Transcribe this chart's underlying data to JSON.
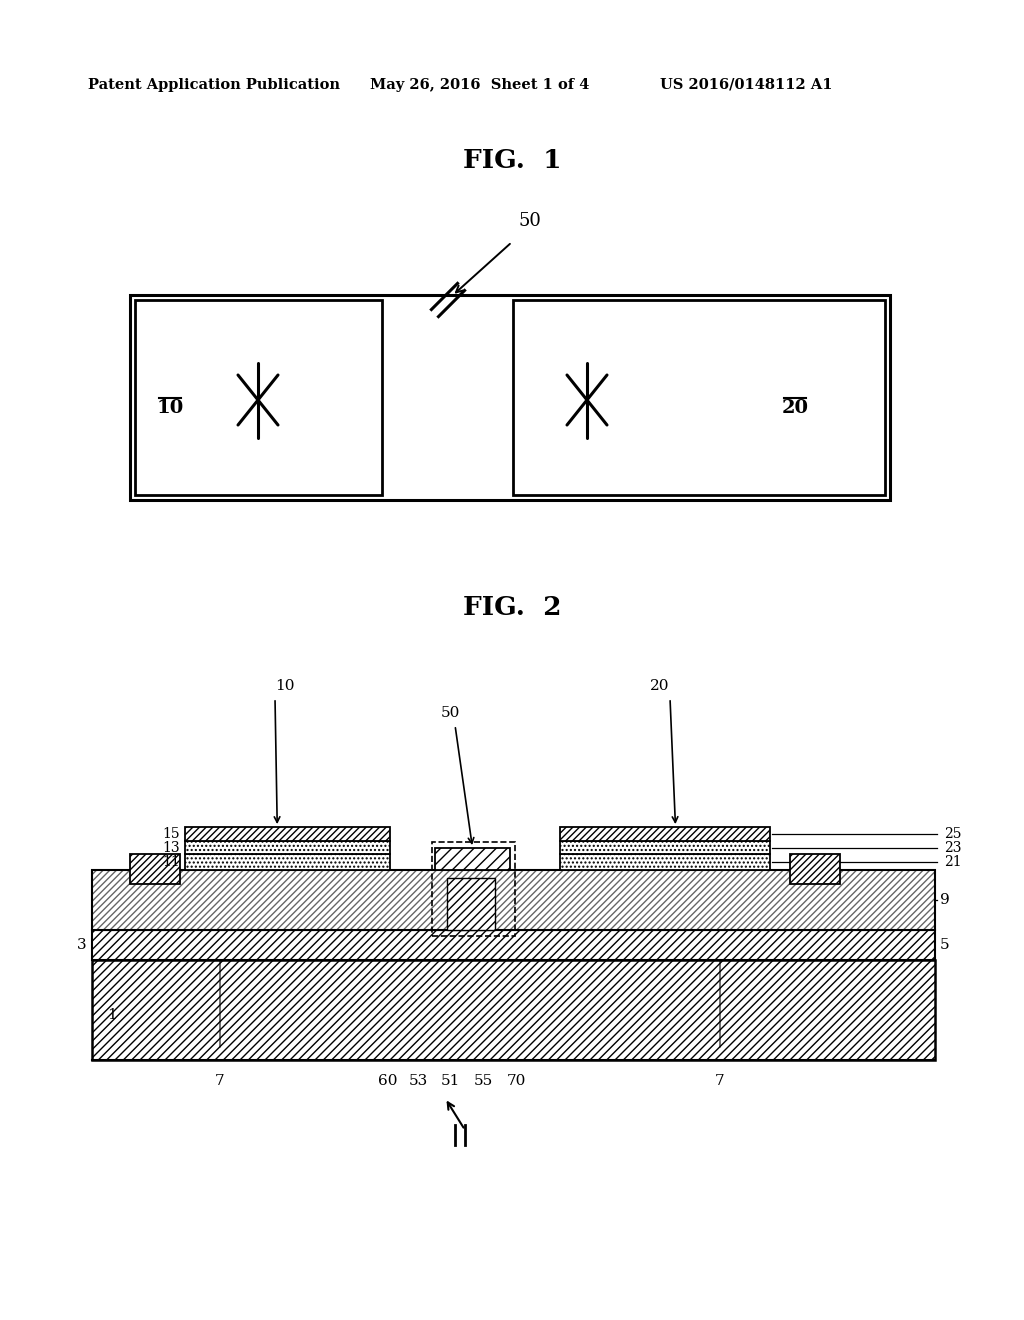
{
  "bg_color": "#ffffff",
  "text_color": "#000000",
  "header_left": "Patent Application Publication",
  "header_center": "May 26, 2016  Sheet 1 of 4",
  "header_right": "US 2016/0148112 A1",
  "fig1_title": "FIG.  1",
  "fig2_title": "FIG.  2"
}
